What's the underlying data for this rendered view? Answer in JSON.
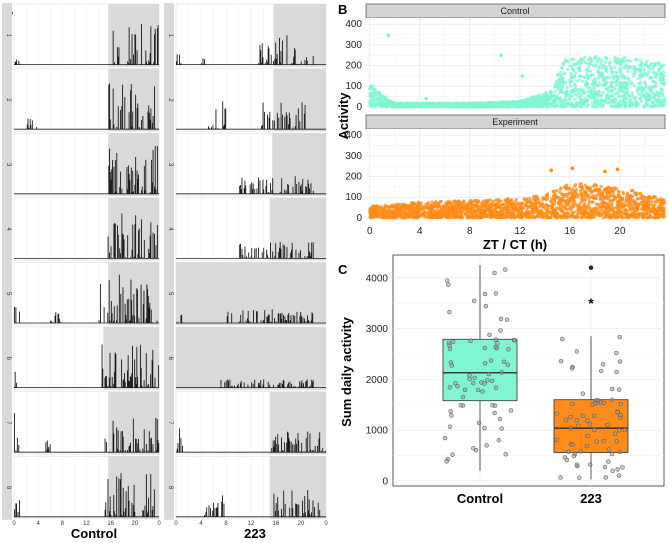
{
  "panel_labels": [
    "A",
    "B",
    "C"
  ],
  "chart_data": [
    {
      "panel": "A",
      "type": "bar",
      "description_hidden": true,
      "groups": [
        "Control",
        "223"
      ],
      "rows": [
        "1",
        "2",
        "3",
        "4",
        "5",
        "6",
        "7",
        "8"
      ],
      "x_ticks": [
        "0",
        "4",
        "8",
        "12",
        "16",
        "20",
        "0"
      ],
      "xlim": [
        0,
        24
      ],
      "dark_start": [
        [
          15.6,
          15.6,
          15.6,
          15.6,
          15.6,
          14.8,
          15.6,
          15.6
        ],
        [
          15.6,
          15.6,
          15.4,
          15.0,
          0,
          0,
          15.0,
          15.0
        ]
      ],
      "activity_windows": [
        [
          [
            [
              15.5,
              24,
              0.8,
              1
            ],
            [
              0.0,
              1.0,
              0.1,
              2
            ]
          ],
          [
            [
              15.5,
              24,
              0.85,
              3
            ],
            [
              2.0,
              4.0,
              0.4,
              4
            ]
          ],
          [
            [
              15.5,
              24,
              0.9,
              5
            ]
          ],
          [
            [
              15.5,
              24,
              0.9,
              6
            ]
          ],
          [
            [
              0.0,
              1.0,
              0.7,
              7
            ],
            [
              6.0,
              8.0,
              0.2,
              8
            ],
            [
              14.0,
              24,
              0.9,
              9
            ]
          ],
          [
            [
              0.0,
              0.8,
              0.3,
              10
            ],
            [
              14.5,
              24,
              0.85,
              11
            ]
          ],
          [
            [
              0.0,
              1.0,
              0.8,
              12
            ],
            [
              5.2,
              6.0,
              0.3,
              13
            ],
            [
              15.0,
              24,
              0.7,
              14
            ]
          ],
          [
            [
              0.0,
              1.0,
              0.4,
              15
            ],
            [
              15.0,
              24,
              0.85,
              16
            ]
          ]
        ],
        [
          [
            [
              0.0,
              1.0,
              0.2,
              17
            ],
            [
              4.0,
              5.0,
              0.2,
              18
            ],
            [
              13.0,
              22,
              0.55,
              19
            ]
          ],
          [
            [
              5.0,
              8.0,
              0.6,
              20
            ],
            [
              13.5,
              21,
              0.5,
              21
            ]
          ],
          [
            [
              10.0,
              22,
              0.35,
              22
            ]
          ],
          [
            [
              10.0,
              22,
              0.3,
              23
            ]
          ],
          [
            [
              0.0,
              1.5,
              0.2,
              24
            ],
            [
              8.0,
              22,
              0.25,
              25
            ]
          ],
          [
            [
              7.0,
              22,
              0.15,
              26
            ]
          ],
          [
            [
              0.0,
              1.0,
              0.5,
              27
            ],
            [
              15.0,
              24,
              0.4,
              28
            ]
          ],
          [
            [
              4.0,
              8.0,
              0.4,
              29
            ],
            [
              15.0,
              23,
              0.5,
              30
            ]
          ]
        ]
      ],
      "xlabels": [
        "Control",
        "223"
      ]
    },
    {
      "panel": "B",
      "type": "scatter",
      "description_hidden": true,
      "facets": [
        "Control",
        "Experiment"
      ],
      "colors": [
        "#7ff5d2",
        "#ff8c1a"
      ],
      "xlabel": "ZT / CT (h)",
      "ylabel": "Activity",
      "xlim": [
        -0.3,
        23.6
      ],
      "ylim": [
        -15,
        430
      ],
      "x_ticks": [
        0,
        4,
        8,
        12,
        16,
        20
      ],
      "y_ticks": [
        0,
        100,
        200,
        300,
        400
      ],
      "profile": {
        "Control": [
          [
            0,
            60
          ],
          [
            1,
            30
          ],
          [
            2,
            10
          ],
          [
            8,
            10
          ],
          [
            12,
            15
          ],
          [
            14.5,
            40
          ],
          [
            15.5,
            120
          ],
          [
            18,
            130
          ],
          [
            21,
            125
          ],
          [
            23.6,
            110
          ]
        ],
        "Experiment": [
          [
            0,
            30
          ],
          [
            4,
            40
          ],
          [
            8,
            45
          ],
          [
            12,
            50
          ],
          [
            14,
            60
          ],
          [
            16,
            90
          ],
          [
            18,
            85
          ],
          [
            21,
            70
          ],
          [
            23.6,
            50
          ]
        ]
      },
      "outliers": {
        "Control": [
          [
            1.5,
            345
          ],
          [
            10.5,
            250
          ],
          [
            12.2,
            150
          ],
          [
            4.5,
            40
          ]
        ],
        "Experiment": [
          [
            14.5,
            230
          ],
          [
            16.2,
            240
          ],
          [
            19.8,
            235
          ],
          [
            18.8,
            225
          ]
        ]
      }
    },
    {
      "panel": "C",
      "type": "box",
      "description_hidden": true,
      "categories": [
        "Control",
        "223"
      ],
      "colors": [
        "#7ff5d2",
        "#ff8c1a"
      ],
      "ylabel": "Sum daily activity",
      "ylim": [
        -100,
        4450
      ],
      "y_ticks": [
        0,
        1000,
        2000,
        3000,
        4000
      ],
      "boxes": [
        {
          "name": "Control",
          "q1": 1580,
          "median": 2130,
          "q3": 2790,
          "whisker_low": 200,
          "whisker_high": 4250,
          "outliers": []
        },
        {
          "name": "223",
          "q1": 560,
          "median": 1040,
          "q3": 1600,
          "whisker_low": 30,
          "whisker_high": 2850,
          "outliers": [
            4200
          ]
        }
      ],
      "annotation": "*",
      "annotation_value": 3520
    }
  ]
}
